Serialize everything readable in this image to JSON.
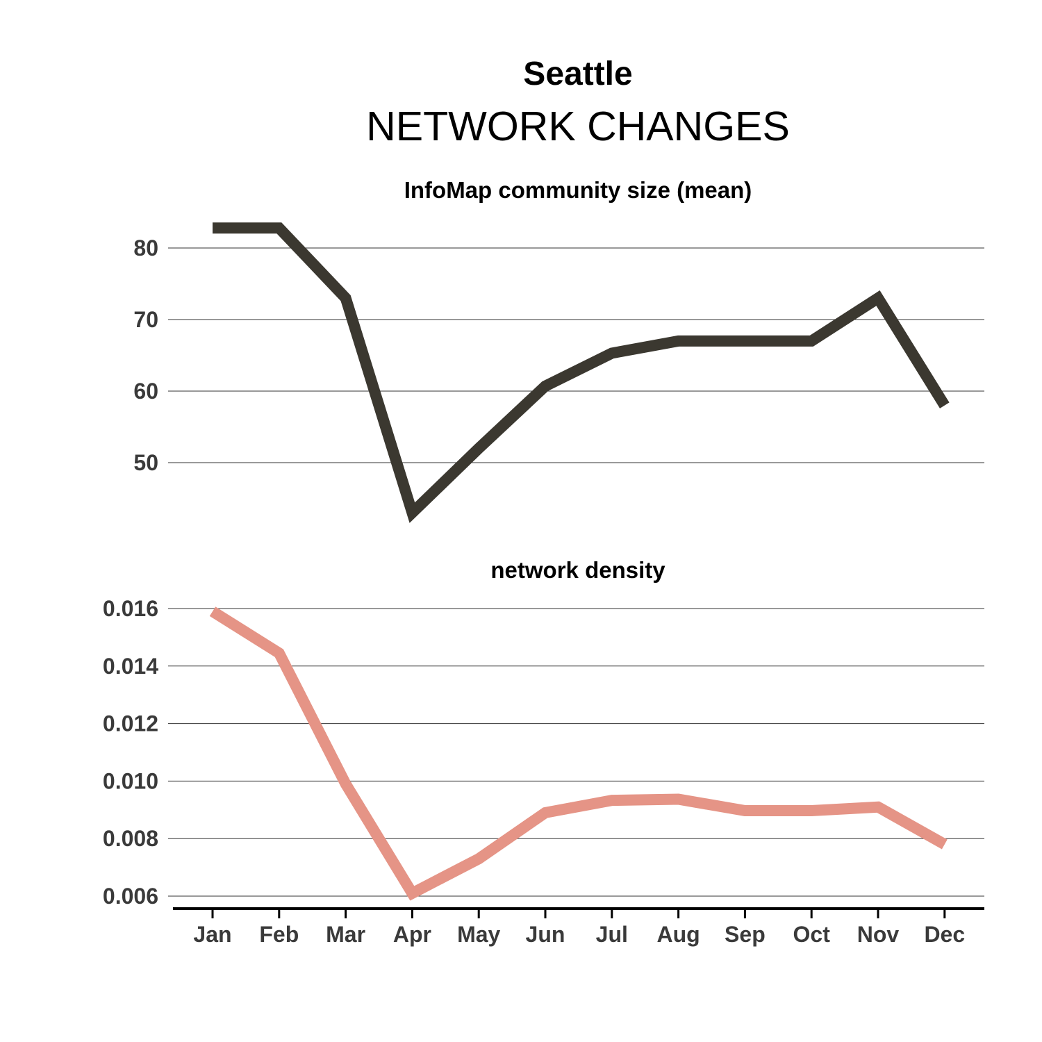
{
  "header": {
    "title": "Seattle",
    "subtitle": "NETWORK CHANGES"
  },
  "colors": {
    "community_line": "#3b3830",
    "density_line": "#e59486"
  },
  "chart_data": [
    {
      "type": "line",
      "title": "InfoMap community size (mean)",
      "categories": [
        "Jan",
        "Feb",
        "Mar",
        "Apr",
        "May",
        "Jun",
        "Jul",
        "Aug",
        "Sep",
        "Oct",
        "Nov",
        "Dec"
      ],
      "values": [
        82.8,
        82.8,
        73,
        43,
        52,
        60.7,
        65.3,
        67,
        67,
        67,
        73,
        58
      ],
      "yticks": [
        50,
        60,
        70,
        80
      ],
      "ytick_labels": [
        "50",
        "60",
        "70",
        "80"
      ],
      "ylim": [
        39,
        87
      ],
      "grid": true
    },
    {
      "type": "line",
      "title": "network density",
      "categories": [
        "Jan",
        "Feb",
        "Mar",
        "Apr",
        "May",
        "Jun",
        "Jul",
        "Aug",
        "Sep",
        "Oct",
        "Nov",
        "Dec"
      ],
      "values": [
        0.0159,
        0.01445,
        0.0099,
        0.0061,
        0.0073,
        0.0089,
        0.00933,
        0.00937,
        0.00897,
        0.00897,
        0.0091,
        0.0078
      ],
      "yticks": [
        0.006,
        0.008,
        0.01,
        0.012,
        0.014,
        0.016
      ],
      "ytick_labels": [
        "0.006",
        "0.008",
        "0.010",
        "0.012",
        "0.014",
        "0.016"
      ],
      "ylim": [
        0.006,
        0.016
      ],
      "grid": true
    }
  ]
}
